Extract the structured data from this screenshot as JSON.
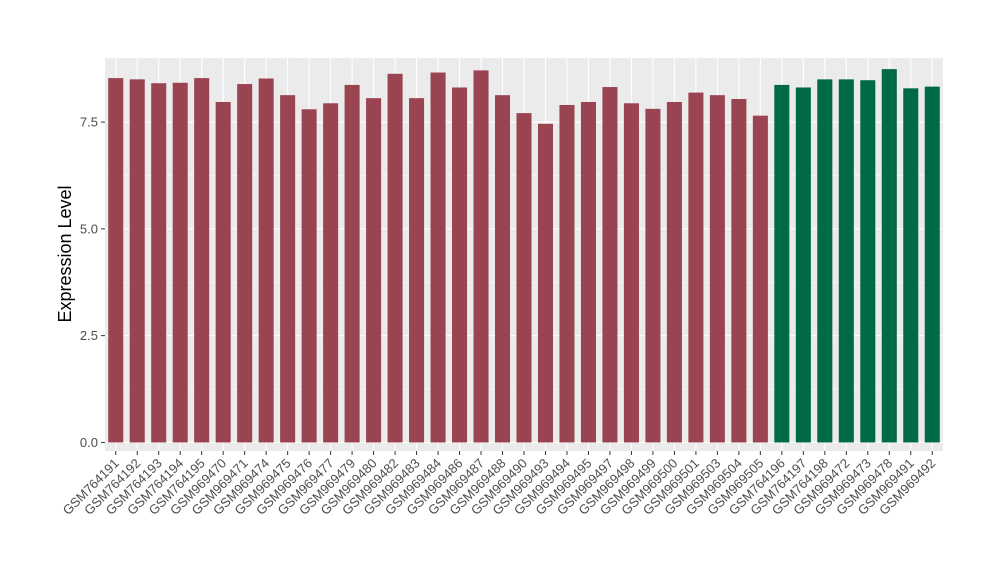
{
  "chart_data": {
    "type": "bar",
    "title": "",
    "xlabel": "",
    "ylabel": "Expression Level",
    "ylim": [
      -0.2,
      9.0
    ],
    "yticks": [
      0.0,
      2.5,
      5.0,
      7.5
    ],
    "ytick_labels": [
      "0.0",
      "2.5",
      "5.0",
      "7.5"
    ],
    "grid": true,
    "legend": "none",
    "colors": {
      "group_a": "#9a4452",
      "group_b": "#006a47",
      "panel_bg": "#ebebeb",
      "grid": "#ffffff"
    },
    "categories": [
      "GSM764191",
      "GSM764192",
      "GSM764193",
      "GSM764194",
      "GSM764195",
      "GSM969470",
      "GSM969471",
      "GSM969474",
      "GSM969475",
      "GSM969476",
      "GSM969477",
      "GSM969479",
      "GSM969480",
      "GSM969482",
      "GSM969483",
      "GSM969484",
      "GSM969486",
      "GSM969487",
      "GSM969488",
      "GSM969490",
      "GSM969493",
      "GSM969494",
      "GSM969495",
      "GSM969497",
      "GSM969498",
      "GSM969499",
      "GSM969500",
      "GSM969501",
      "GSM969503",
      "GSM969504",
      "GSM969505",
      "GSM764196",
      "GSM764197",
      "GSM764198",
      "GSM969472",
      "GSM969473",
      "GSM969478",
      "GSM969491",
      "GSM969492"
    ],
    "values": [
      8.53,
      8.5,
      8.41,
      8.42,
      8.53,
      7.97,
      8.39,
      8.52,
      8.13,
      7.8,
      7.94,
      8.37,
      8.06,
      8.63,
      8.06,
      8.66,
      8.31,
      8.71,
      8.13,
      7.71,
      7.46,
      7.9,
      7.97,
      8.32,
      7.94,
      7.81,
      7.97,
      8.19,
      8.13,
      8.04,
      7.65,
      8.37,
      8.31,
      8.5,
      8.5,
      8.48,
      8.74,
      8.29,
      8.33
    ],
    "groups": [
      "a",
      "a",
      "a",
      "a",
      "a",
      "a",
      "a",
      "a",
      "a",
      "a",
      "a",
      "a",
      "a",
      "a",
      "a",
      "a",
      "a",
      "a",
      "a",
      "a",
      "a",
      "a",
      "a",
      "a",
      "a",
      "a",
      "a",
      "a",
      "a",
      "a",
      "a",
      "b",
      "b",
      "b",
      "b",
      "b",
      "b",
      "b",
      "b"
    ]
  }
}
